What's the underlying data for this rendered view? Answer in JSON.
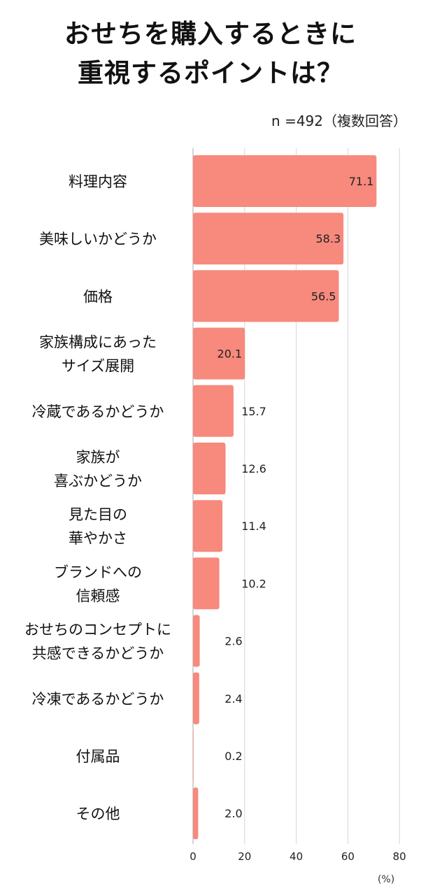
{
  "title": {
    "line1": "おせちを購入するときに",
    "line2": "重視するポイントは？"
  },
  "note": "n =492（複数回答）",
  "unit": "(%)",
  "colors": {
    "bar": "#f7897d",
    "grid": "#d6d6d6",
    "axis": "#aaaaaa"
  },
  "chart_data": {
    "type": "bar",
    "orientation": "horizontal",
    "categories": [
      [
        "料理内容"
      ],
      [
        "美味しいかどうか"
      ],
      [
        "価格"
      ],
      [
        "家族構成にあった",
        "サイズ展開"
      ],
      [
        "冷蔵であるかどうか"
      ],
      [
        "家族が",
        "喜ぶかどうか"
      ],
      [
        "見た目の",
        "華やかさ"
      ],
      [
        "ブランドへの",
        "信頼感"
      ],
      [
        "おせちのコンセプトに",
        "共感できるかどうか"
      ],
      [
        "冷凍であるかどうか"
      ],
      [
        "付属品"
      ],
      [
        "その他"
      ]
    ],
    "values": [
      71.1,
      58.3,
      56.5,
      20.1,
      15.7,
      12.6,
      11.4,
      10.2,
      2.6,
      2.4,
      0.2,
      2.0
    ],
    "value_labels": [
      "71.1",
      "58.3",
      "56.5",
      "20.1",
      "15.7",
      "12.6",
      "11.4",
      "10.2",
      "2.6",
      "2.4",
      "0.2",
      "2.0"
    ],
    "xlim": [
      0,
      80
    ],
    "xticks": [
      0,
      20,
      40,
      60,
      80
    ],
    "xtick_labels": [
      "0",
      "20",
      "40",
      "60",
      "80"
    ],
    "grid": true
  }
}
